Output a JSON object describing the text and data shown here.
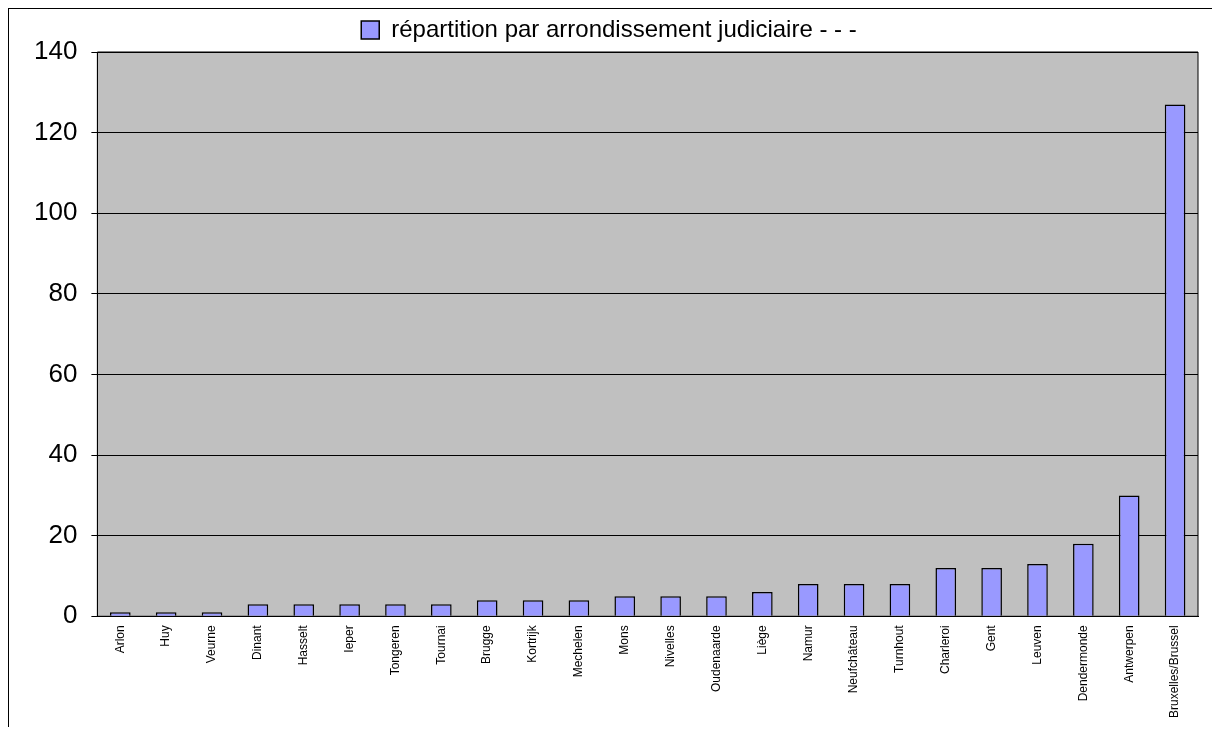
{
  "chart_data": {
    "type": "bar",
    "categories": [
      "Arlon",
      "Huy",
      "Veurne",
      "Dinant",
      "Hasselt",
      "Ieper",
      "Tongeren",
      "Tournai",
      "Brugge",
      "Kortrijk",
      "Mechelen",
      "Mons",
      "Nivelles",
      "Oudenaarde",
      "Liège",
      "Namur",
      "Neufchâteau",
      "Turnhout",
      "Charleroi",
      "Gent",
      "Leuven",
      "Dendermonde",
      "Antwerpen",
      "Bruxelles/Brussel"
    ],
    "series": [
      {
        "name": "répartition par arrondissement judiciaire - - -",
        "color": "#9999ff",
        "values": [
          1,
          1,
          1,
          3,
          3,
          3,
          3,
          3,
          4,
          4,
          4,
          5,
          5,
          5,
          6,
          8,
          8,
          8,
          12,
          12,
          13,
          18,
          30,
          127
        ]
      }
    ],
    "ylim": [
      0,
      140
    ],
    "yticks": [
      0,
      20,
      40,
      60,
      80,
      100,
      120,
      140
    ],
    "grid": "y",
    "legend": "top"
  }
}
